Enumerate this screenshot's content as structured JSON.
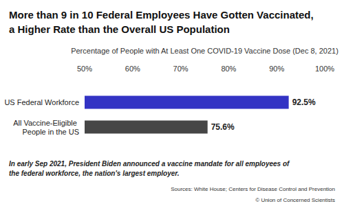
{
  "chart_data": {
    "type": "bar",
    "orientation": "horizontal",
    "title": "More than 9 in 10 Federal Employees Have Gotten Vaccinated,\na Higher Rate than the Overall US Population",
    "xlabel": "Percentage of People with At Least One COVID-19 Vaccine Dose (Dec 8, 2021)",
    "categories": [
      "US Federal Workforce",
      "All Vaccine-Eligible People in the US"
    ],
    "values": [
      92.5,
      75.6
    ],
    "value_labels": [
      "92.5%",
      "75.6%"
    ],
    "colors": [
      "#3333c4",
      "#464646"
    ],
    "xlim": [
      50,
      100
    ],
    "xticks": [
      {
        "value": 50,
        "label": "50%"
      },
      {
        "value": 60,
        "label": "60%"
      },
      {
        "value": 70,
        "label": "70%"
      },
      {
        "value": 80,
        "label": "80%"
      },
      {
        "value": 90,
        "label": "90%"
      },
      {
        "value": 100,
        "label": "100%"
      }
    ],
    "grid": false,
    "data_labels": true,
    "note": "In early Sep 2021, President Biden announced a vaccine mandate for all employees of the federal workforce, the nation's largest employer.",
    "source": "Sources: White House; Centers for Disease Control and Prevention",
    "credit": "© Union of Concerned Scientists"
  }
}
